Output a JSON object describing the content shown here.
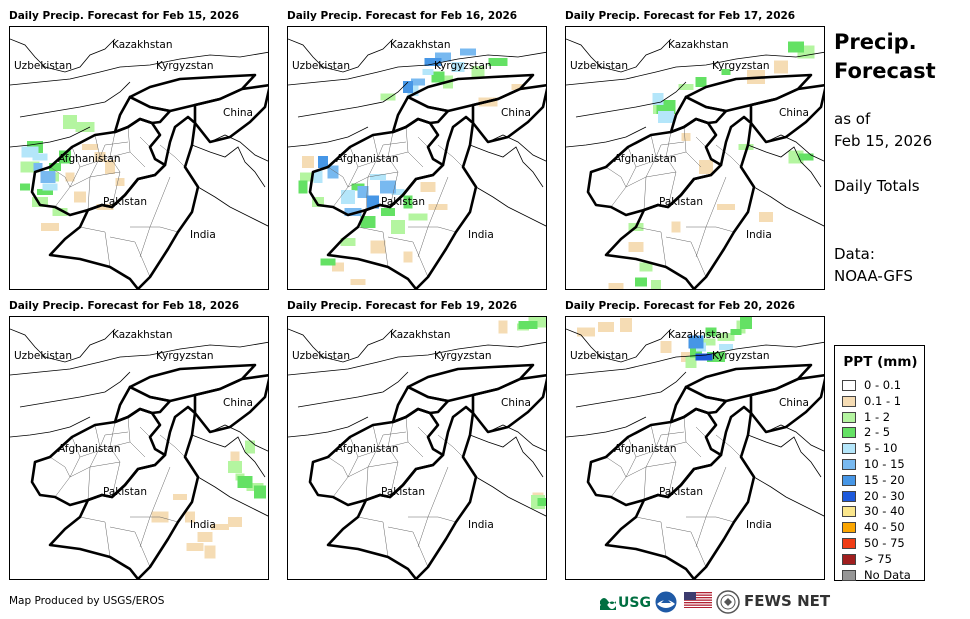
{
  "panels": [
    {
      "title": "Daily Precip. Forecast for Feb 15, 2026",
      "precip": [
        {
          "cls": "0.1 - 1",
          "pts": [
            [
              80,
              120
            ],
            [
              90,
              130
            ],
            [
              60,
              150
            ],
            [
              70,
              170
            ],
            [
              40,
              200
            ],
            [
              100,
              140
            ],
            [
              110,
              155
            ],
            [
              95,
              180
            ]
          ]
        },
        {
          "cls": "1 - 2",
          "pts": [
            [
              20,
              140
            ],
            [
              40,
              150
            ],
            [
              75,
              100
            ],
            [
              60,
              95
            ],
            [
              30,
              175
            ],
            [
              50,
              185
            ]
          ]
        },
        {
          "cls": "2 - 5",
          "pts": [
            [
              25,
              120
            ],
            [
              45,
              140
            ],
            [
              15,
              160
            ],
            [
              35,
              165
            ],
            [
              55,
              130
            ]
          ]
        },
        {
          "cls": "5 - 10",
          "pts": [
            [
              30,
              130
            ],
            [
              40,
              160
            ],
            [
              20,
              125
            ]
          ]
        },
        {
          "cls": "10 - 15",
          "pts": [
            [
              28,
              140
            ],
            [
              38,
              150
            ]
          ]
        }
      ]
    },
    {
      "title": "Daily Precip. Forecast for Feb 16, 2026",
      "precip": [
        {
          "cls": "0.1 - 1",
          "pts": [
            [
              50,
              240
            ],
            [
              70,
              255
            ],
            [
              120,
              230
            ],
            [
              150,
              180
            ],
            [
              140,
              160
            ],
            [
              90,
              220
            ],
            [
              20,
              135
            ],
            [
              200,
              75
            ],
            [
              230,
              60
            ]
          ]
        },
        {
          "cls": "1 - 2",
          "pts": [
            [
              20,
              150
            ],
            [
              30,
              175
            ],
            [
              110,
              200
            ],
            [
              130,
              190
            ],
            [
              100,
              70
            ],
            [
              160,
              55
            ],
            [
              60,
              215
            ],
            [
              190,
              45
            ]
          ]
        },
        {
          "cls": "2 - 5",
          "pts": [
            [
              40,
              235
            ],
            [
              80,
              195
            ],
            [
              120,
              175
            ],
            [
              100,
              185
            ],
            [
              15,
              160
            ],
            [
              150,
              50
            ],
            [
              210,
              35
            ],
            [
              70,
              160
            ]
          ]
        },
        {
          "cls": "5 - 10",
          "pts": [
            [
              30,
              150
            ],
            [
              90,
              150
            ],
            [
              60,
              170
            ],
            [
              110,
              165
            ],
            [
              140,
              45
            ],
            [
              170,
              40
            ],
            [
              125,
              62
            ]
          ]
        },
        {
          "cls": "10 - 15",
          "pts": [
            [
              45,
              145
            ],
            [
              75,
              165
            ],
            [
              65,
              185
            ],
            [
              100,
              160
            ],
            [
              155,
              30
            ],
            [
              180,
              25
            ],
            [
              130,
              55
            ]
          ]
        },
        {
          "cls": "15 - 20",
          "pts": [
            [
              35,
              135
            ],
            [
              85,
              175
            ],
            [
              145,
              35
            ],
            [
              120,
              60
            ]
          ]
        }
      ]
    },
    {
      "title": "Daily Precip. Forecast for Feb 17, 2026",
      "precip": [
        {
          "cls": "0.1 - 1",
          "pts": [
            [
              70,
              220
            ],
            [
              110,
              200
            ],
            [
              160,
              180
            ],
            [
              200,
              190
            ],
            [
              50,
              260
            ],
            [
              190,
              50
            ],
            [
              215,
              40
            ],
            [
              140,
              140
            ],
            [
              120,
              110
            ]
          ]
        },
        {
          "cls": "1 - 2",
          "pts": [
            [
              80,
              240
            ],
            [
              70,
              200
            ],
            [
              90,
              260
            ],
            [
              95,
              80
            ],
            [
              120,
              60
            ],
            [
              180,
              120
            ],
            [
              230,
              130
            ],
            [
              240,
              25
            ]
          ]
        },
        {
          "cls": "2 - 5",
          "pts": [
            [
              75,
              255
            ],
            [
              100,
              80
            ],
            [
              160,
              45
            ],
            [
              240,
              130
            ],
            [
              230,
              20
            ],
            [
              135,
              55
            ]
          ]
        },
        {
          "cls": "5 - 10",
          "pts": [
            [
              92,
              72
            ],
            [
              100,
              90
            ]
          ]
        }
      ]
    },
    {
      "title": "Daily Precip. Forecast for Feb 18, 2026",
      "precip": [
        {
          "cls": "0.1 - 1",
          "pts": [
            [
              180,
              200
            ],
            [
              195,
              220
            ],
            [
              210,
              210
            ],
            [
              225,
              205
            ],
            [
              200,
              235
            ],
            [
              185,
              230
            ],
            [
              150,
              200
            ],
            [
              170,
              180
            ],
            [
              225,
              140
            ]
          ]
        },
        {
          "cls": "1 - 2",
          "pts": [
            [
              230,
              160
            ],
            [
              245,
              170
            ],
            [
              240,
              130
            ],
            [
              225,
              150
            ]
          ]
        },
        {
          "cls": "2 - 5",
          "pts": [
            [
              235,
              165
            ],
            [
              250,
              175
            ]
          ]
        }
      ]
    },
    {
      "title": "Daily Precip. Forecast for Feb 19, 2026",
      "precip": [
        {
          "cls": "0.1 - 1",
          "pts": [
            [
              250,
              180
            ],
            [
              215,
              10
            ]
          ]
        },
        {
          "cls": "1 - 2",
          "pts": [
            [
              235,
              10
            ],
            [
              250,
              5
            ],
            [
              250,
              185
            ]
          ]
        },
        {
          "cls": "2 - 5",
          "pts": [
            [
              240,
              8
            ],
            [
              255,
              185
            ]
          ]
        }
      ]
    },
    {
      "title": "Daily Precip. Forecast for Feb 20, 2026",
      "precip": [
        {
          "cls": "0.1 - 1",
          "pts": [
            [
              20,
              15
            ],
            [
              40,
              10
            ],
            [
              60,
              8
            ],
            [
              100,
              30
            ],
            [
              120,
              40
            ]
          ]
        },
        {
          "cls": "1 - 2",
          "pts": [
            [
              140,
              25
            ],
            [
              160,
              20
            ],
            [
              175,
              10
            ],
            [
              125,
              45
            ]
          ]
        },
        {
          "cls": "2 - 5",
          "pts": [
            [
              130,
              35
            ],
            [
              150,
              40
            ],
            [
              170,
              15
            ],
            [
              180,
              5
            ],
            [
              145,
              15
            ]
          ]
        },
        {
          "cls": "5 - 10",
          "pts": [
            [
              135,
              30
            ],
            [
              160,
              30
            ]
          ]
        },
        {
          "cls": "15 - 20",
          "pts": [
            [
              130,
              25
            ]
          ]
        },
        {
          "cls": "20 - 30",
          "pts": [
            [
              138,
              40
            ]
          ]
        }
      ]
    }
  ],
  "labels": {
    "kazakhstan": "Kazakhstan",
    "uzbekistan": "Uzbekistan",
    "kyrgyzstan": "Kyrgyzstan",
    "china": "China",
    "afghanistan": "Afghanistan",
    "pakistan": "Pakistan",
    "india": "India"
  },
  "side": {
    "title_line1": "Precip.",
    "title_line2": "Forecast",
    "asof_line1": "as of",
    "asof_line2": "Feb 15, 2026",
    "totals": "Daily Totals",
    "data_line1": "Data:",
    "data_line2": "NOAA-GFS"
  },
  "legend": {
    "title": "PPT (mm)",
    "items": [
      {
        "label": "0 - 0.1",
        "color": "#ffffff"
      },
      {
        "label": "0.1 - 1",
        "color": "#f5dcb4"
      },
      {
        "label": "1 - 2",
        "color": "#b4f5a0"
      },
      {
        "label": "2 - 5",
        "color": "#64e164"
      },
      {
        "label": "5 - 10",
        "color": "#b4e6fa"
      },
      {
        "label": "10 - 15",
        "color": "#78b9f0"
      },
      {
        "label": "15 - 20",
        "color": "#4696e6"
      },
      {
        "label": "20 - 30",
        "color": "#1e5adc"
      },
      {
        "label": "30 - 40",
        "color": "#fae68c"
      },
      {
        "label": "40 - 50",
        "color": "#faa500"
      },
      {
        "label": "50 - 75",
        "color": "#f03c14"
      },
      {
        "label": "> 75",
        "color": "#a01e1e"
      },
      {
        "label": "No Data",
        "color": "#969696"
      }
    ]
  },
  "footer": {
    "credit": "Map Produced by USGS/EROS",
    "usgs": "USGS",
    "fews": "FEWS NET"
  }
}
